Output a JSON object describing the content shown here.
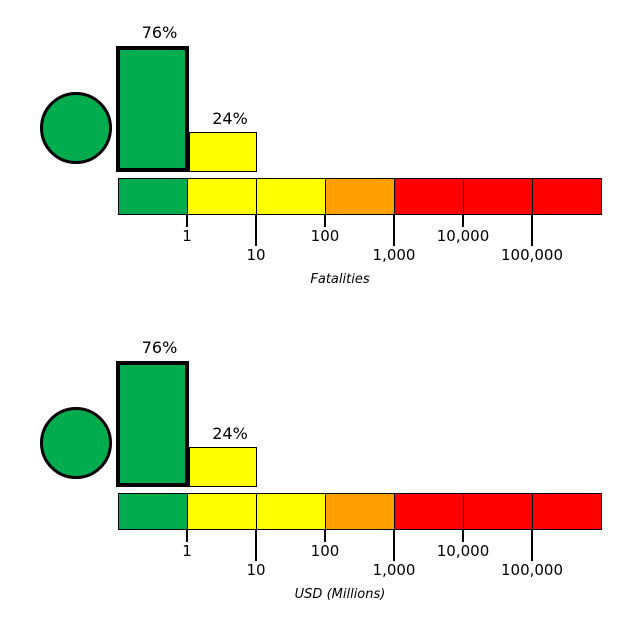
{
  "colors": {
    "green": "#00AC4D",
    "yellow": "#FFFF00",
    "orange": "#FFA000",
    "red": "#FF0000",
    "outline": "#000000",
    "background": "#FFFFFF"
  },
  "panels": [
    {
      "id": "fatalities",
      "axis_label": "Fatalities",
      "alert_color": "#00AC4D",
      "bars": [
        {
          "label": "76%",
          "value": 76,
          "color": "#00AC4D",
          "emphasized": true
        },
        {
          "label": "24%",
          "value": 24,
          "color": "#FFFF00",
          "emphasized": false
        }
      ],
      "scale": {
        "segments": [
          "#00AC4D",
          "#FFFF00",
          "#FFFF00",
          "#FFA000",
          "#FF0000",
          "#FF0000",
          "#FF0000"
        ],
        "ticks": [
          {
            "label": "1",
            "row": "upper"
          },
          {
            "label": "10",
            "row": "lower"
          },
          {
            "label": "100",
            "row": "upper"
          },
          {
            "label": "1,000",
            "row": "lower"
          },
          {
            "label": "10,000",
            "row": "upper"
          },
          {
            "label": "100,000",
            "row": "lower"
          }
        ]
      }
    },
    {
      "id": "economic-losses",
      "axis_label": "USD (Millions)",
      "alert_color": "#00AC4D",
      "bars": [
        {
          "label": "76%",
          "value": 76,
          "color": "#00AC4D",
          "emphasized": true
        },
        {
          "label": "24%",
          "value": 24,
          "color": "#FFFF00",
          "emphasized": false
        }
      ],
      "scale": {
        "segments": [
          "#00AC4D",
          "#FFFF00",
          "#FFFF00",
          "#FFA000",
          "#FF0000",
          "#FF0000",
          "#FF0000"
        ],
        "ticks": [
          {
            "label": "1",
            "row": "upper"
          },
          {
            "label": "10",
            "row": "lower"
          },
          {
            "label": "100",
            "row": "upper"
          },
          {
            "label": "1,000",
            "row": "lower"
          },
          {
            "label": "10,000",
            "row": "upper"
          },
          {
            "label": "100,000",
            "row": "lower"
          }
        ]
      }
    }
  ],
  "chart_data": [
    {
      "type": "bar",
      "xlabel": "Fatalities",
      "x_scale": "logarithmic bins",
      "tick_labels": [
        "1",
        "10",
        "100",
        "1,000",
        "10,000",
        "100,000"
      ],
      "categories": [
        "<1",
        "1-10",
        "10-100",
        "100-1,000",
        "1,000-10,000",
        "10,000-100,000",
        ">100,000"
      ],
      "values": [
        76,
        24,
        0,
        0,
        0,
        0,
        0
      ],
      "value_format": "percent",
      "bar_labels": [
        "76%",
        "24%"
      ],
      "bin_colors": [
        "#00AC4D",
        "#FFFF00",
        "#FFFF00",
        "#FFA000",
        "#FF0000",
        "#FF0000",
        "#FF0000"
      ],
      "highlighted_bin_index": 0,
      "alert_indicator": "green circle",
      "legend_position": "none",
      "grid": false
    },
    {
      "type": "bar",
      "xlabel": "USD (Millions)",
      "x_scale": "logarithmic bins",
      "tick_labels": [
        "1",
        "10",
        "100",
        "1,000",
        "10,000",
        "100,000"
      ],
      "categories": [
        "<1",
        "1-10",
        "10-100",
        "100-1,000",
        "1,000-10,000",
        "10,000-100,000",
        ">100,000"
      ],
      "values": [
        76,
        24,
        0,
        0,
        0,
        0,
        0
      ],
      "value_format": "percent",
      "bar_labels": [
        "76%",
        "24%"
      ],
      "bin_colors": [
        "#00AC4D",
        "#FFFF00",
        "#FFFF00",
        "#FFA000",
        "#FF0000",
        "#FF0000",
        "#FF0000"
      ],
      "highlighted_bin_index": 0,
      "alert_indicator": "green circle",
      "legend_position": "none",
      "grid": false
    }
  ]
}
